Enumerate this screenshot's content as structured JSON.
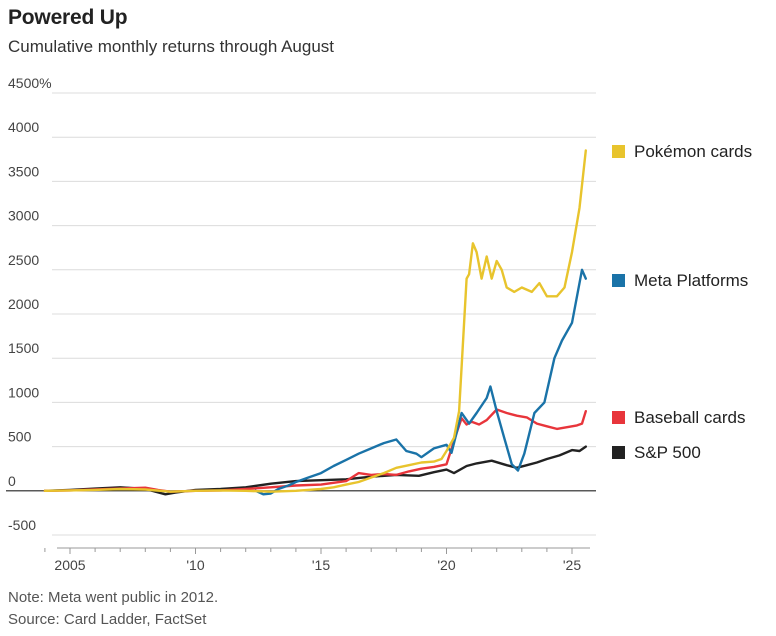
{
  "header": {
    "title": "Powered Up",
    "subtitle": "Cumulative monthly returns through August"
  },
  "footer": {
    "note": "Note: Meta went public in 2012.",
    "source": "Source: Card Ladder, FactSet"
  },
  "chart_data": {
    "type": "line",
    "title": "Powered Up",
    "subtitle": "Cumulative monthly returns through August",
    "xlabel": "",
    "ylabel": "",
    "xlim": [
      2004.0,
      2025.8
    ],
    "ylim": [
      -500,
      4500
    ],
    "yticks": [
      {
        "value": 4500,
        "label": "4500%"
      },
      {
        "value": 4000,
        "label": "4000"
      },
      {
        "value": 3500,
        "label": "3500"
      },
      {
        "value": 3000,
        "label": "3000"
      },
      {
        "value": 2500,
        "label": "2500"
      },
      {
        "value": 2000,
        "label": "2000"
      },
      {
        "value": 1500,
        "label": "1500"
      },
      {
        "value": 1000,
        "label": "1000"
      },
      {
        "value": 500,
        "label": "500"
      },
      {
        "value": 0,
        "label": "0"
      },
      {
        "value": -500,
        "label": "-500"
      }
    ],
    "xticks": [
      {
        "value": 2005,
        "label": "2005"
      },
      {
        "value": 2010,
        "label": "'10"
      },
      {
        "value": 2015,
        "label": "'15"
      },
      {
        "value": 2020,
        "label": "'20"
      },
      {
        "value": 2025,
        "label": "'25"
      }
    ],
    "grid": true,
    "legend_placement": "right",
    "series": [
      {
        "name": "Pokémon cards",
        "color": "#e8c42d",
        "points": [
          [
            2004.0,
            0
          ],
          [
            2005.0,
            5
          ],
          [
            2006.0,
            10
          ],
          [
            2007.0,
            20
          ],
          [
            2008.0,
            15
          ],
          [
            2009.0,
            -10
          ],
          [
            2010.0,
            0
          ],
          [
            2011.0,
            5
          ],
          [
            2012.0,
            0
          ],
          [
            2013.0,
            -10
          ],
          [
            2014.0,
            0
          ],
          [
            2015.0,
            20
          ],
          [
            2015.5,
            40
          ],
          [
            2016.0,
            70
          ],
          [
            2016.5,
            100
          ],
          [
            2017.0,
            150
          ],
          [
            2017.5,
            200
          ],
          [
            2018.0,
            260
          ],
          [
            2018.5,
            290
          ],
          [
            2019.0,
            320
          ],
          [
            2019.5,
            330
          ],
          [
            2019.8,
            360
          ],
          [
            2020.0,
            450
          ],
          [
            2020.3,
            600
          ],
          [
            2020.5,
            900
          ],
          [
            2020.8,
            2400
          ],
          [
            2020.9,
            2450
          ],
          [
            2021.05,
            2800
          ],
          [
            2021.2,
            2700
          ],
          [
            2021.4,
            2400
          ],
          [
            2021.6,
            2650
          ],
          [
            2021.8,
            2400
          ],
          [
            2022.0,
            2600
          ],
          [
            2022.2,
            2500
          ],
          [
            2022.4,
            2300
          ],
          [
            2022.7,
            2250
          ],
          [
            2023.0,
            2300
          ],
          [
            2023.4,
            2250
          ],
          [
            2023.7,
            2350
          ],
          [
            2024.0,
            2200
          ],
          [
            2024.4,
            2200
          ],
          [
            2024.7,
            2300
          ],
          [
            2025.0,
            2700
          ],
          [
            2025.3,
            3200
          ],
          [
            2025.55,
            3850
          ]
        ]
      },
      {
        "name": "Meta Platforms",
        "color": "#1a73a8",
        "points": [
          [
            2012.4,
            0
          ],
          [
            2012.7,
            -40
          ],
          [
            2013.0,
            -30
          ],
          [
            2013.3,
            20
          ],
          [
            2013.7,
            60
          ],
          [
            2014.0,
            100
          ],
          [
            2014.5,
            150
          ],
          [
            2015.0,
            200
          ],
          [
            2015.5,
            280
          ],
          [
            2016.0,
            350
          ],
          [
            2016.5,
            420
          ],
          [
            2017.0,
            480
          ],
          [
            2017.5,
            540
          ],
          [
            2018.0,
            580
          ],
          [
            2018.4,
            450
          ],
          [
            2018.8,
            420
          ],
          [
            2019.0,
            380
          ],
          [
            2019.5,
            480
          ],
          [
            2020.0,
            520
          ],
          [
            2020.2,
            430
          ],
          [
            2020.6,
            880
          ],
          [
            2020.9,
            760
          ],
          [
            2021.2,
            880
          ],
          [
            2021.6,
            1050
          ],
          [
            2021.75,
            1180
          ],
          [
            2022.0,
            900
          ],
          [
            2022.3,
            600
          ],
          [
            2022.6,
            300
          ],
          [
            2022.85,
            230
          ],
          [
            2023.1,
            420
          ],
          [
            2023.5,
            880
          ],
          [
            2023.9,
            1000
          ],
          [
            2024.3,
            1500
          ],
          [
            2024.6,
            1700
          ],
          [
            2025.0,
            1900
          ],
          [
            2025.2,
            2200
          ],
          [
            2025.4,
            2500
          ],
          [
            2025.55,
            2400
          ]
        ]
      },
      {
        "name": "Baseball cards",
        "color": "#e8353b",
        "points": [
          [
            2004.0,
            0
          ],
          [
            2005.0,
            5
          ],
          [
            2006.0,
            15
          ],
          [
            2007.0,
            25
          ],
          [
            2008.0,
            35
          ],
          [
            2008.5,
            10
          ],
          [
            2009.0,
            -10
          ],
          [
            2010.0,
            0
          ],
          [
            2011.0,
            5
          ],
          [
            2012.0,
            20
          ],
          [
            2013.0,
            40
          ],
          [
            2014.0,
            60
          ],
          [
            2015.0,
            70
          ],
          [
            2016.0,
            110
          ],
          [
            2016.5,
            200
          ],
          [
            2017.0,
            180
          ],
          [
            2017.5,
            190
          ],
          [
            2018.0,
            180
          ],
          [
            2018.5,
            220
          ],
          [
            2019.0,
            250
          ],
          [
            2019.5,
            270
          ],
          [
            2020.0,
            300
          ],
          [
            2020.4,
            650
          ],
          [
            2020.6,
            820
          ],
          [
            2020.8,
            750
          ],
          [
            2021.0,
            780
          ],
          [
            2021.3,
            750
          ],
          [
            2021.6,
            800
          ],
          [
            2022.0,
            920
          ],
          [
            2022.4,
            880
          ],
          [
            2022.8,
            850
          ],
          [
            2023.2,
            830
          ],
          [
            2023.6,
            760
          ],
          [
            2024.0,
            730
          ],
          [
            2024.4,
            700
          ],
          [
            2024.8,
            720
          ],
          [
            2025.2,
            740
          ],
          [
            2025.4,
            760
          ],
          [
            2025.55,
            900
          ]
        ]
      },
      {
        "name": "S&P 500",
        "color": "#222222",
        "points": [
          [
            2004.0,
            0
          ],
          [
            2005.0,
            10
          ],
          [
            2006.0,
            25
          ],
          [
            2007.0,
            40
          ],
          [
            2008.0,
            20
          ],
          [
            2008.8,
            -40
          ],
          [
            2009.2,
            -20
          ],
          [
            2010.0,
            10
          ],
          [
            2011.0,
            20
          ],
          [
            2012.0,
            40
          ],
          [
            2013.0,
            80
          ],
          [
            2014.0,
            110
          ],
          [
            2015.0,
            120
          ],
          [
            2016.0,
            130
          ],
          [
            2017.0,
            160
          ],
          [
            2018.0,
            180
          ],
          [
            2018.9,
            170
          ],
          [
            2019.5,
            210
          ],
          [
            2020.0,
            240
          ],
          [
            2020.3,
            200
          ],
          [
            2020.8,
            280
          ],
          [
            2021.2,
            310
          ],
          [
            2021.8,
            340
          ],
          [
            2022.4,
            290
          ],
          [
            2022.8,
            260
          ],
          [
            2023.2,
            290
          ],
          [
            2023.6,
            320
          ],
          [
            2024.0,
            360
          ],
          [
            2024.5,
            400
          ],
          [
            2025.0,
            460
          ],
          [
            2025.3,
            450
          ],
          [
            2025.55,
            500
          ]
        ]
      }
    ]
  }
}
